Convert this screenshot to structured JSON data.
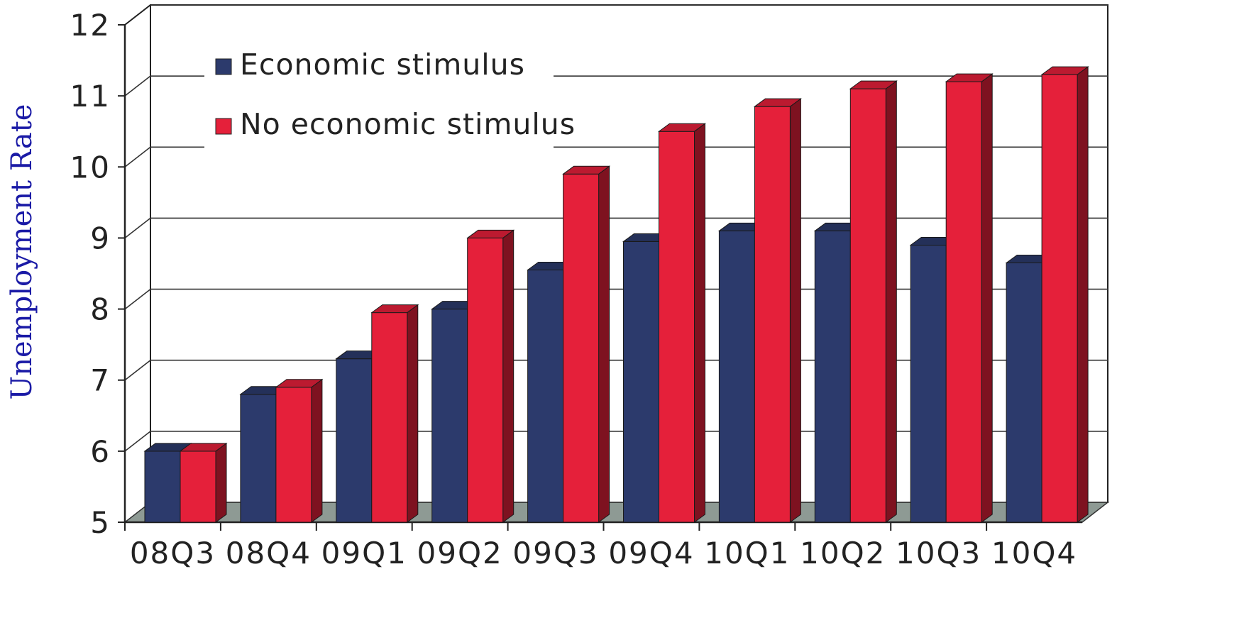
{
  "chart_data": {
    "type": "bar",
    "ylabel": "Unemployment Rate",
    "xlabel": "",
    "ylim": [
      5,
      12
    ],
    "yticks": [
      "5",
      "6",
      "7",
      "8",
      "9",
      "10",
      "11",
      "12"
    ],
    "categories": [
      "08Q3",
      "08Q4",
      "09Q1",
      "09Q2",
      "09Q3",
      "09Q4",
      "10Q1",
      "10Q2",
      "10Q3",
      "10Q4"
    ],
    "series": [
      {
        "name": "Economic stimulus",
        "color": "#2c3a6c",
        "values": [
          6.0,
          6.8,
          7.3,
          8.0,
          8.55,
          8.95,
          9.1,
          9.1,
          8.9,
          8.65
        ]
      },
      {
        "name": "No economic stimulus",
        "color": "#e5203a",
        "values": [
          6.0,
          6.9,
          7.95,
          9.0,
          9.9,
          10.5,
          10.85,
          11.1,
          11.2,
          11.3
        ]
      }
    ],
    "grid": true,
    "legend": "top-left",
    "style": "3d-bar"
  }
}
